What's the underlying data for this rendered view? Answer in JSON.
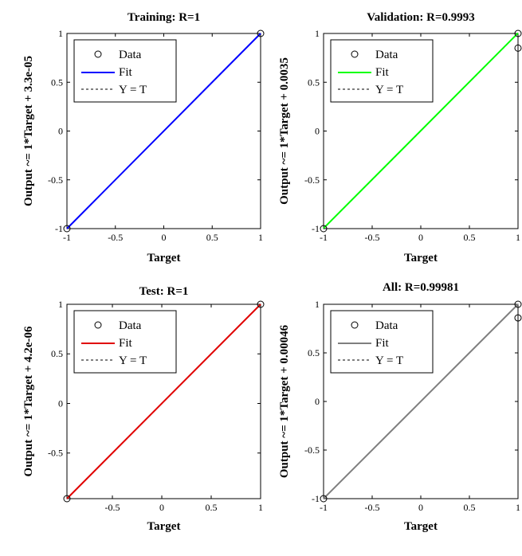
{
  "chart_data": [
    {
      "type": "scatter",
      "title": "Training: R=1",
      "xlabel": "Target",
      "ylabel": "Output ~= 1*Target + 3.3e-05",
      "xlim": [
        -1,
        1
      ],
      "ylim": [
        -1,
        1
      ],
      "xticks": [
        "-1",
        "-0.5",
        "0",
        "0.5",
        "1"
      ],
      "yticks": [
        "-1",
        "-0.5",
        "0",
        "0.5",
        "1"
      ],
      "fit_color": "#0000ff",
      "fit": {
        "slope": 1,
        "intercept": 3.3e-05
      },
      "data_points": [
        [
          -1,
          -1
        ],
        [
          1,
          1
        ]
      ],
      "legend": [
        "Data",
        "Fit",
        "Y = T"
      ],
      "legend_position": "top-left",
      "grid": false
    },
    {
      "type": "scatter",
      "title": "Validation: R=0.9993",
      "xlabel": "Target",
      "ylabel": "Output ~= 1*Target + 0.0035",
      "xlim": [
        -1,
        1
      ],
      "ylim": [
        -1,
        1
      ],
      "xticks": [
        "-1",
        "-0.5",
        "0",
        "0.5",
        "1"
      ],
      "yticks": [
        "-1",
        "-0.5",
        "0",
        "0.5",
        "1"
      ],
      "fit_color": "#00ff00",
      "fit": {
        "slope": 1,
        "intercept": 0.0035
      },
      "data_points": [
        [
          -1,
          -1
        ],
        [
          1,
          1
        ],
        [
          1,
          0.85
        ]
      ],
      "legend": [
        "Data",
        "Fit",
        "Y = T"
      ],
      "legend_position": "top-left",
      "grid": false
    },
    {
      "type": "scatter",
      "title": "Test: R=1",
      "xlabel": "Target",
      "ylabel": "Output ~= 1*Target + 4.2e-06",
      "xlim": [
        -0.96,
        1
      ],
      "ylim": [
        -0.96,
        1
      ],
      "xticks": [
        "-0.5",
        "0",
        "0.5",
        "1"
      ],
      "yticks": [
        "-0.5",
        "0",
        "0.5",
        "1"
      ],
      "fit_color": "#e00000",
      "fit": {
        "slope": 1,
        "intercept": 4.2e-06
      },
      "data_points": [
        [
          -0.96,
          -0.96
        ],
        [
          1,
          1
        ]
      ],
      "legend": [
        "Data",
        "Fit",
        "Y = T"
      ],
      "legend_position": "top-left",
      "grid": false
    },
    {
      "type": "scatter",
      "title": "All: R=0.99981",
      "xlabel": "Target",
      "ylabel": "Output ~= 1*Target + 0.00046",
      "xlim": [
        -1,
        1
      ],
      "ylim": [
        -1,
        1
      ],
      "xticks": [
        "-1",
        "-0.5",
        "0",
        "0.5",
        "1"
      ],
      "yticks": [
        "-1",
        "-0.5",
        "0",
        "0.5",
        "1"
      ],
      "fit_color": "#7f7f7f",
      "fit": {
        "slope": 1,
        "intercept": 0.00046
      },
      "data_points": [
        [
          -1,
          -1
        ],
        [
          1,
          1
        ],
        [
          1,
          0.86
        ]
      ],
      "legend": [
        "Data",
        "Fit",
        "Y = T"
      ],
      "legend_position": "top-left",
      "grid": false
    }
  ]
}
